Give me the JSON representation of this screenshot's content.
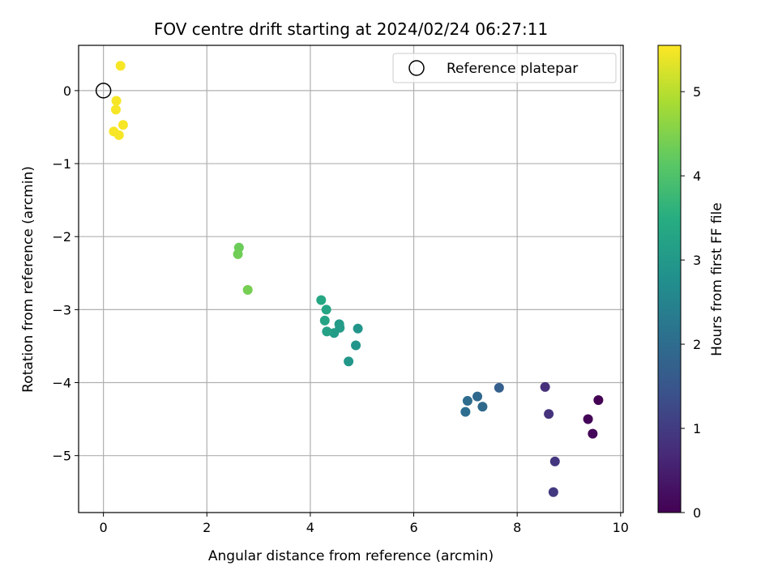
{
  "chart_data": {
    "type": "scatter",
    "title": "FOV centre drift starting at 2024/02/24 06:27:11",
    "xlabel": "Angular distance from reference (arcmin)",
    "ylabel": "Rotation from reference (arcmin)",
    "xlim": [
      -0.48,
      10.05
    ],
    "ylim": [
      -5.78,
      0.62
    ],
    "xticks": [
      "0",
      "2",
      "4",
      "6",
      "8",
      "10"
    ],
    "xtick_values": [
      0,
      2,
      4,
      6,
      8,
      10
    ],
    "yticks": [
      "0",
      "−1",
      "−2",
      "−3",
      "−4",
      "−5"
    ],
    "ytick_values": [
      0,
      -1,
      -2,
      -3,
      -4,
      -5
    ],
    "grid": true,
    "legend": {
      "placement": "top-right",
      "label": "Reference platepar"
    },
    "reference_point": {
      "x": 0,
      "y": 0
    },
    "colorbar": {
      "label": "Hours from first FF file",
      "colormap": "viridis",
      "range": [
        0,
        5.55
      ],
      "ticks": [
        "0",
        "1",
        "2",
        "3",
        "4",
        "5"
      ],
      "tick_values": [
        0,
        1,
        2,
        3,
        4,
        5
      ]
    },
    "series": [
      {
        "points": [
          {
            "x": 9.57,
            "y": -4.24,
            "hours": 0.0
          },
          {
            "x": 9.37,
            "y": -4.5,
            "hours": 0.05
          },
          {
            "x": 9.46,
            "y": -4.7,
            "hours": 0.1
          },
          {
            "x": 8.54,
            "y": -4.06,
            "hours": 0.8
          },
          {
            "x": 8.61,
            "y": -4.43,
            "hours": 0.85
          },
          {
            "x": 8.73,
            "y": -5.08,
            "hours": 0.9
          },
          {
            "x": 8.7,
            "y": -5.5,
            "hours": 0.95
          },
          {
            "x": 7.65,
            "y": -4.07,
            "hours": 1.7
          },
          {
            "x": 7.23,
            "y": -4.19,
            "hours": 1.9
          },
          {
            "x": 7.33,
            "y": -4.33,
            "hours": 1.95
          },
          {
            "x": 7.04,
            "y": -4.25,
            "hours": 2.0
          },
          {
            "x": 7.0,
            "y": -4.4,
            "hours": 2.05
          },
          {
            "x": 4.92,
            "y": -3.26,
            "hours": 2.9
          },
          {
            "x": 4.88,
            "y": -3.49,
            "hours": 2.92
          },
          {
            "x": 4.74,
            "y": -3.71,
            "hours": 2.95
          },
          {
            "x": 4.56,
            "y": -3.2,
            "hours": 3.05
          },
          {
            "x": 4.57,
            "y": -3.25,
            "hours": 3.08
          },
          {
            "x": 4.46,
            "y": -3.32,
            "hours": 3.1
          },
          {
            "x": 4.32,
            "y": -3.3,
            "hours": 3.2
          },
          {
            "x": 4.28,
            "y": -3.15,
            "hours": 3.25
          },
          {
            "x": 4.31,
            "y": -3.0,
            "hours": 3.3
          },
          {
            "x": 4.21,
            "y": -2.87,
            "hours": 3.35
          },
          {
            "x": 2.62,
            "y": -2.15,
            "hours": 4.3
          },
          {
            "x": 2.6,
            "y": -2.24,
            "hours": 4.35
          },
          {
            "x": 2.79,
            "y": -2.73,
            "hours": 4.4
          },
          {
            "x": 0.33,
            "y": 0.34,
            "hours": 5.5
          },
          {
            "x": 0.25,
            "y": -0.14,
            "hours": 5.5
          },
          {
            "x": 0.24,
            "y": -0.26,
            "hours": 5.5
          },
          {
            "x": 0.38,
            "y": -0.47,
            "hours": 5.5
          },
          {
            "x": 0.2,
            "y": -0.56,
            "hours": 5.5
          },
          {
            "x": 0.3,
            "y": -0.61,
            "hours": 5.5
          }
        ]
      }
    ]
  }
}
